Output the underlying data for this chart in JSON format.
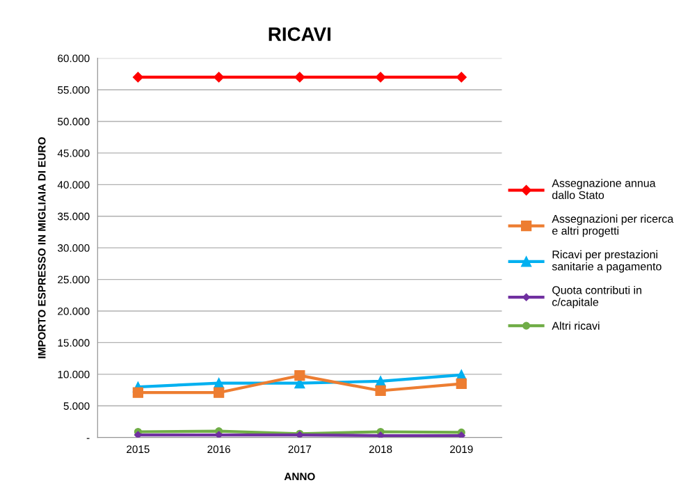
{
  "chart_data": {
    "type": "line",
    "title": "RICAVI",
    "xlabel": "ANNO",
    "ylabel": "IMPORTO ESPRESSO IN MIGLIAIA DI EURO",
    "categories": [
      "2015",
      "2016",
      "2017",
      "2018",
      "2019"
    ],
    "series": [
      {
        "name": "Assegnazione annua dallo Stato",
        "color": "#ff0000",
        "marker": "diamond",
        "values": [
          57000,
          57000,
          57000,
          57000,
          57000
        ]
      },
      {
        "name": "Assegnazioni per ricerca e altri progetti",
        "color": "#ed7d31",
        "marker": "square",
        "values": [
          7100,
          7100,
          9800,
          7400,
          8500
        ]
      },
      {
        "name": "Ricavi per prestazioni sanitarie a pagamento",
        "color": "#00b0f0",
        "marker": "triangle",
        "values": [
          8000,
          8600,
          8600,
          8900,
          9900
        ]
      },
      {
        "name": "Quota contributi in c/capitale",
        "color": "#7030a0",
        "marker": "diamond",
        "values": [
          400,
          400,
          400,
          300,
          300
        ]
      },
      {
        "name": "Altri ricavi",
        "color": "#70ad47",
        "marker": "circle",
        "values": [
          900,
          1000,
          600,
          900,
          800
        ]
      }
    ],
    "ylim": [
      0,
      60000
    ],
    "yticks": [
      {
        "value": 0,
        "label": "-"
      },
      {
        "value": 5000,
        "label": "5.000"
      },
      {
        "value": 10000,
        "label": "10.000"
      },
      {
        "value": 15000,
        "label": "15.000"
      },
      {
        "value": 20000,
        "label": "20.000"
      },
      {
        "value": 25000,
        "label": "25.000"
      },
      {
        "value": 30000,
        "label": "30.000"
      },
      {
        "value": 35000,
        "label": "35.000"
      },
      {
        "value": 40000,
        "label": "40.000"
      },
      {
        "value": 45000,
        "label": "45.000"
      },
      {
        "value": 50000,
        "label": "50.000"
      },
      {
        "value": 55000,
        "label": "55.000"
      },
      {
        "value": 60000,
        "label": "60.000"
      }
    ],
    "grid": "y",
    "legend": "right",
    "line_style": "solid"
  }
}
